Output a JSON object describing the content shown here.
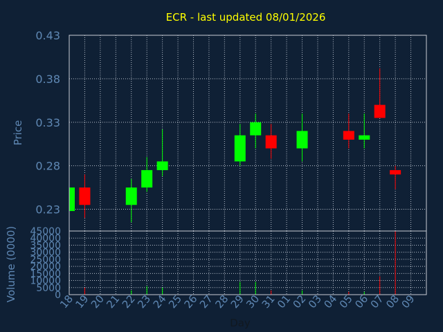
{
  "chart_data": [
    {
      "type": "candlestick",
      "title": "ECR - last updated 08/01/2026",
      "ylabel": "Price",
      "ylim": [
        0.205,
        0.43
      ],
      "y_ticks": [
        "0.43",
        "0.38",
        "0.33",
        "0.28",
        "0.23"
      ],
      "y_tick_values": [
        0.43,
        0.38,
        0.33,
        0.28,
        0.23
      ],
      "grid": true,
      "colors": {
        "up": "#00ff00",
        "down": "#ff0000",
        "title": "#ffff00",
        "axis_text": "#5f88b4",
        "grid": "#b8c0cc",
        "background": "#0f2035"
      },
      "candles": [
        {
          "day": "18",
          "open": 0.228,
          "high": 0.255,
          "low": 0.228,
          "close": 0.255
        },
        {
          "day": "19",
          "open": 0.255,
          "high": 0.27,
          "low": 0.22,
          "close": 0.235
        },
        {
          "day": "22",
          "open": 0.235,
          "high": 0.265,
          "low": 0.215,
          "close": 0.255
        },
        {
          "day": "23",
          "open": 0.255,
          "high": 0.29,
          "low": 0.25,
          "close": 0.275
        },
        {
          "day": "24",
          "open": 0.275,
          "high": 0.322,
          "low": 0.268,
          "close": 0.285
        },
        {
          "day": "29",
          "open": 0.285,
          "high": 0.328,
          "low": 0.28,
          "close": 0.315
        },
        {
          "day": "30",
          "open": 0.315,
          "high": 0.34,
          "low": 0.3,
          "close": 0.33
        },
        {
          "day": "31",
          "open": 0.315,
          "high": 0.328,
          "low": 0.288,
          "close": 0.3
        },
        {
          "day": "02",
          "open": 0.3,
          "high": 0.34,
          "low": 0.285,
          "close": 0.32
        },
        {
          "day": "05",
          "open": 0.32,
          "high": 0.34,
          "low": 0.3,
          "close": 0.31
        },
        {
          "day": "06",
          "open": 0.31,
          "high": 0.34,
          "low": 0.3,
          "close": 0.315
        },
        {
          "day": "07",
          "open": 0.35,
          "high": 0.392,
          "low": 0.335,
          "close": 0.335
        },
        {
          "day": "08",
          "open": 0.275,
          "high": 0.28,
          "low": 0.253,
          "close": 0.27
        }
      ]
    },
    {
      "type": "bar",
      "xlabel": "Day",
      "ylabel": "Volume (0000)",
      "ylim": [
        0,
        45000
      ],
      "y_ticks": [
        "45000",
        "40000",
        "35000",
        "30000",
        "25000",
        "20000",
        "15000",
        "10000",
        "5000",
        "0"
      ],
      "y_tick_values": [
        45000,
        40000,
        35000,
        30000,
        25000,
        20000,
        15000,
        10000,
        5000,
        0
      ],
      "categories": [
        "18",
        "19",
        "20",
        "21",
        "22",
        "23",
        "24",
        "25",
        "26",
        "27",
        "28",
        "29",
        "30",
        "31",
        "01",
        "02",
        "03",
        "04",
        "05",
        "06",
        "07",
        "08",
        "09"
      ],
      "volumes": [
        {
          "day": "19",
          "value": 5000,
          "direction": "down"
        },
        {
          "day": "22",
          "value": 3000,
          "direction": "up"
        },
        {
          "day": "23",
          "value": 6000,
          "direction": "up"
        },
        {
          "day": "24",
          "value": 5000,
          "direction": "up"
        },
        {
          "day": "29",
          "value": 9000,
          "direction": "up"
        },
        {
          "day": "30",
          "value": 9000,
          "direction": "up"
        },
        {
          "day": "31",
          "value": 3000,
          "direction": "down"
        },
        {
          "day": "02",
          "value": 3000,
          "direction": "up"
        },
        {
          "day": "05",
          "value": 2000,
          "direction": "down"
        },
        {
          "day": "06",
          "value": 2000,
          "direction": "up"
        },
        {
          "day": "07",
          "value": 13000,
          "direction": "down"
        },
        {
          "day": "08",
          "value": 45000,
          "direction": "down"
        }
      ]
    }
  ]
}
